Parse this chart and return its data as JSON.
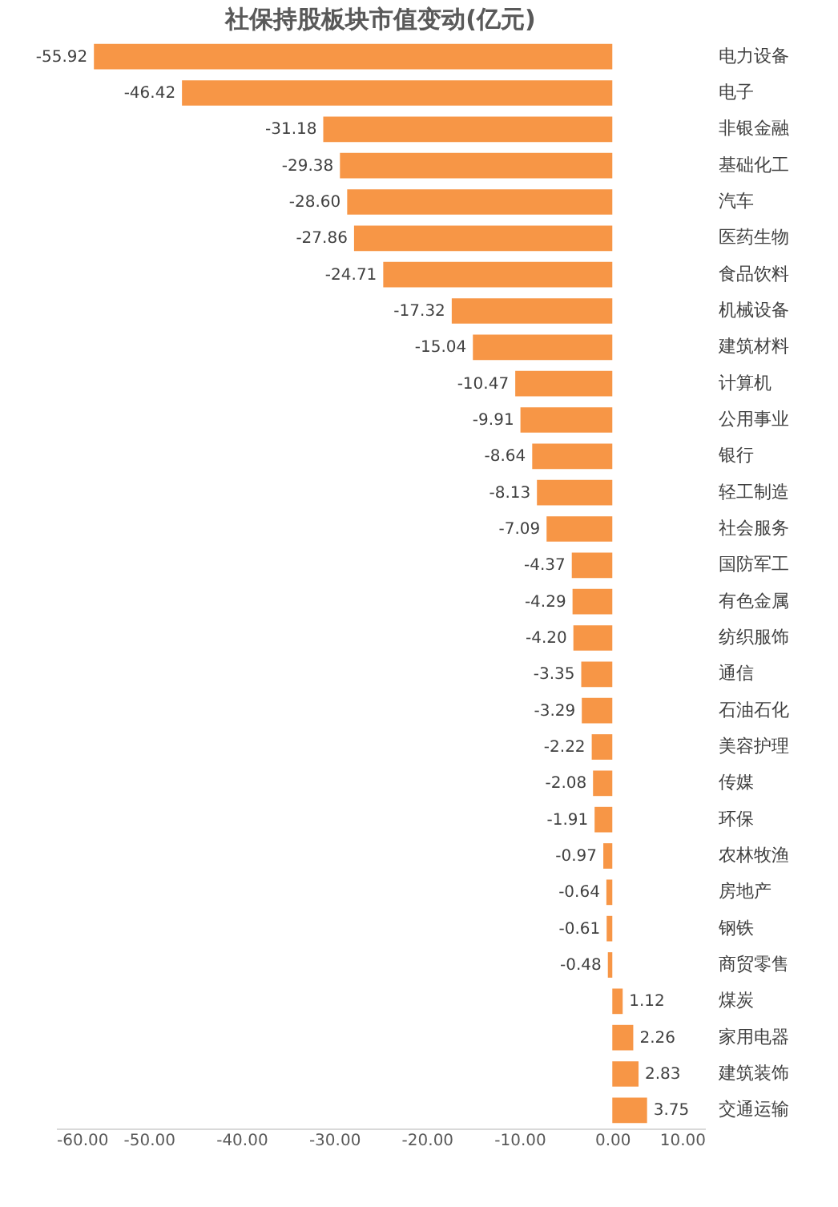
{
  "chart_data": {
    "type": "bar",
    "orientation": "horizontal",
    "title": "社保持股板块市值变动(亿元)",
    "categories": [
      "电力设备",
      "电子",
      "非银金融",
      "基础化工",
      "汽车",
      "医药生物",
      "食品饮料",
      "机械设备",
      "建筑材料",
      "计算机",
      "公用事业",
      "银行",
      "轻工制造",
      "社会服务",
      "国防军工",
      "有色金属",
      "纺织服饰",
      "通信",
      "石油石化",
      "美容护理",
      "传媒",
      "环保",
      "农林牧渔",
      "房地产",
      "钢铁",
      "商贸零售",
      "煤炭",
      "家用电器",
      "建筑装饰",
      "交通运输"
    ],
    "values": [
      -55.92,
      -46.42,
      -31.18,
      -29.38,
      -28.6,
      -27.86,
      -24.71,
      -17.32,
      -15.04,
      -10.47,
      -9.91,
      -8.64,
      -8.13,
      -7.09,
      -4.37,
      -4.29,
      -4.2,
      -3.35,
      -3.29,
      -2.22,
      -2.08,
      -1.91,
      -0.97,
      -0.64,
      -0.61,
      -0.48,
      1.12,
      2.26,
      2.83,
      3.75
    ],
    "value_labels": [
      "-55.92",
      "-46.42",
      "-31.18",
      "-29.38",
      "-28.60",
      "-27.86",
      "-24.71",
      "-17.32",
      "-15.04",
      "-10.47",
      "-9.91",
      "-8.64",
      "-8.13",
      "-7.09",
      "-4.37",
      "-4.29",
      "-4.20",
      "-3.35",
      "-3.29",
      "-2.22",
      "-2.08",
      "-1.91",
      "-0.97",
      "-0.64",
      "-0.61",
      "-0.48",
      "1.12",
      "2.26",
      "2.83",
      "3.75"
    ],
    "color": "#f79646",
    "xlim": [
      -60,
      10
    ],
    "xticks": [
      {
        "value": -60,
        "label": "-60.00"
      },
      {
        "value": -50,
        "label": "-50.00"
      },
      {
        "value": -40,
        "label": "-40.00"
      },
      {
        "value": -30,
        "label": "-30.00"
      },
      {
        "value": -20,
        "label": "-20.00"
      },
      {
        "value": -10,
        "label": "-10.00"
      },
      {
        "value": 0,
        "label": "0.00"
      },
      {
        "value": 10,
        "label": "10.00"
      }
    ]
  }
}
